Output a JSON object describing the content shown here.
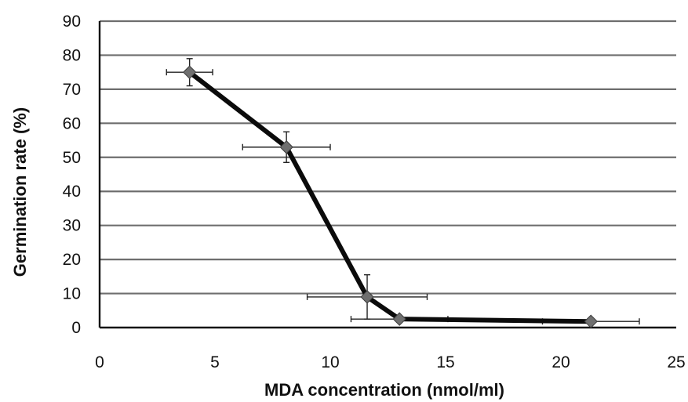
{
  "chart_data": {
    "type": "scatter",
    "title": "",
    "xlabel": "MDA concentration (nmol/ml)",
    "ylabel": "Germination rate (%)",
    "xlim": [
      0,
      25
    ],
    "ylim": [
      0,
      90
    ],
    "x_ticks": [
      "0",
      "5",
      "10",
      "15",
      "20",
      "25"
    ],
    "y_ticks": [
      "0",
      "10",
      "20",
      "30",
      "40",
      "50",
      "60",
      "70",
      "80",
      "90"
    ],
    "grid": "horizontal",
    "legend": "none",
    "line_color": "#0b0b0b",
    "marker_color": "#6f6f6f",
    "series": [
      {
        "points": [
          {
            "x": 3.9,
            "y": 75,
            "x_err": 1.0,
            "y_err": 4
          },
          {
            "x": 8.1,
            "y": 53,
            "x_err": 1.9,
            "y_err": 4.5
          },
          {
            "x": 11.6,
            "y": 9,
            "x_err": 2.6,
            "y_err": 6.5
          },
          {
            "x": 13.0,
            "y": 2.5,
            "x_err": 2.1,
            "y_err": 0.5
          },
          {
            "x": 21.3,
            "y": 1.8,
            "x_err": 2.1,
            "y_err": 0.5
          }
        ]
      }
    ]
  }
}
